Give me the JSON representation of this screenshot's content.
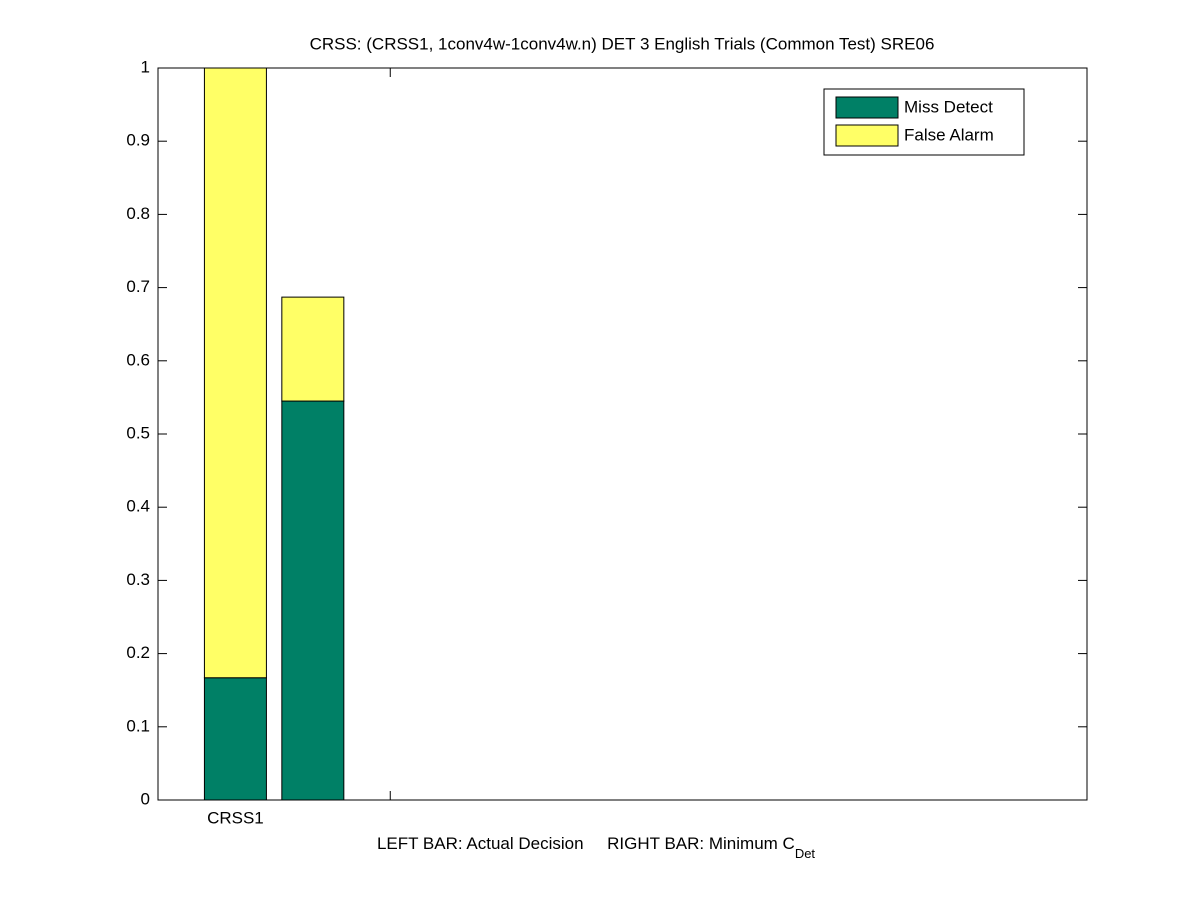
{
  "chart_data": {
    "type": "bar",
    "stacked": true,
    "title": "CRSS: (CRSS1, 1conv4w-1conv4w.n) DET 3 English Trials (Common Test) SRE06",
    "xlabel": {
      "text": "LEFT BAR: Actual Decision     RIGHT BAR: Minimum C",
      "subscript": "Det"
    },
    "x": [
      1,
      1.5
    ],
    "series": [
      {
        "name": "Miss Detect",
        "color": "#008066",
        "values": [
          0.167,
          0.545
        ]
      },
      {
        "name": "False Alarm",
        "color": "#ffff66",
        "values": [
          0.833,
          0.142
        ]
      }
    ],
    "xlim": [
      0.5,
      6.5
    ],
    "xticks": [
      {
        "value": 1,
        "label": "CRSS1"
      },
      {
        "value": 2,
        "label": null
      }
    ],
    "ylim": [
      0,
      1
    ],
    "yticks": [
      0,
      0.1,
      0.2,
      0.3,
      0.4,
      0.5,
      0.6,
      0.7,
      0.8,
      0.9,
      1
    ],
    "grid": false,
    "legend": "northeast"
  }
}
